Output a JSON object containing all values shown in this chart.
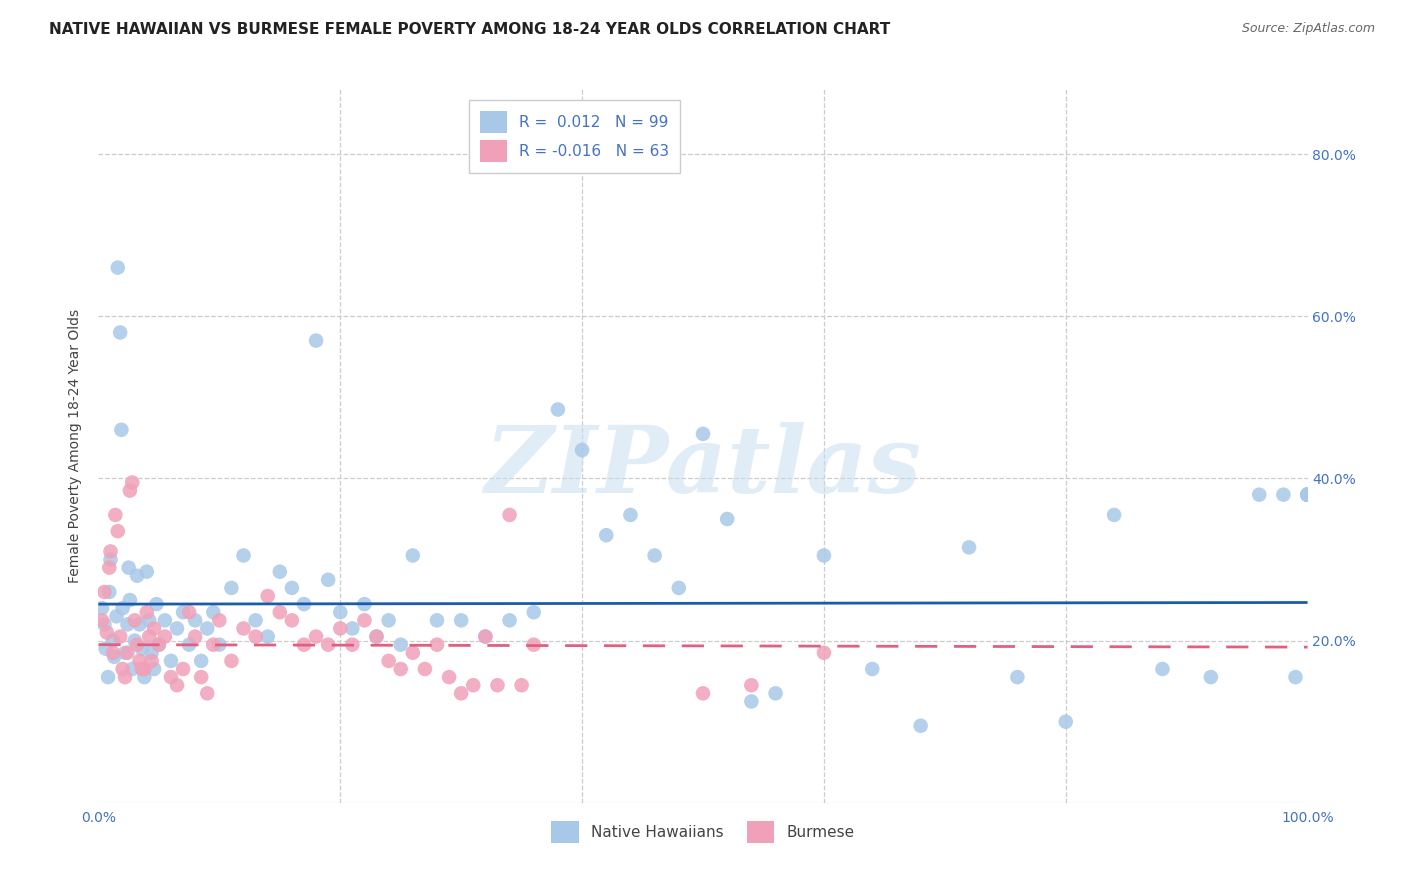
{
  "title": "NATIVE HAWAIIAN VS BURMESE FEMALE POVERTY AMONG 18-24 YEAR OLDS CORRELATION CHART",
  "source": "Source: ZipAtlas.com",
  "ylabel": "Female Poverty Among 18-24 Year Olds",
  "xlim": [
    0.0,
    1.0
  ],
  "ylim": [
    0.0,
    0.88
  ],
  "xticks": [
    0.0,
    1.0
  ],
  "xticklabels": [
    "0.0%",
    "100.0%"
  ],
  "yticks_right": [
    0.2,
    0.4,
    0.6,
    0.8
  ],
  "yticklabels_right": [
    "20.0%",
    "40.0%",
    "60.0%",
    "80.0%"
  ],
  "nh_color": "#a8c8e8",
  "bur_color": "#f0a0b8",
  "nh_line_color": "#1a5ca8",
  "bur_line_color": "#e06080",
  "nh_line_y": 0.245,
  "bur_line_y": 0.195,
  "R_nh": "0.012",
  "N_nh": "99",
  "R_bur": "-0.016",
  "N_bur": "63",
  "nh_x": [
    0.003,
    0.005,
    0.006,
    0.008,
    0.009,
    0.01,
    0.012,
    0.013,
    0.015,
    0.016,
    0.018,
    0.019,
    0.02,
    0.022,
    0.024,
    0.025,
    0.026,
    0.028,
    0.03,
    0.032,
    0.034,
    0.036,
    0.038,
    0.04,
    0.042,
    0.044,
    0.046,
    0.048,
    0.05,
    0.055,
    0.06,
    0.065,
    0.07,
    0.075,
    0.08,
    0.085,
    0.09,
    0.095,
    0.1,
    0.11,
    0.12,
    0.13,
    0.14,
    0.15,
    0.16,
    0.17,
    0.18,
    0.19,
    0.2,
    0.21,
    0.22,
    0.23,
    0.24,
    0.25,
    0.26,
    0.28,
    0.3,
    0.32,
    0.34,
    0.36,
    0.38,
    0.4,
    0.42,
    0.44,
    0.46,
    0.48,
    0.5,
    0.52,
    0.54,
    0.56,
    0.6,
    0.64,
    0.68,
    0.72,
    0.76,
    0.8,
    0.84,
    0.88,
    0.92,
    0.96,
    0.98,
    0.99,
    1.0,
    1.0,
    1.0,
    1.0,
    1.0,
    1.0,
    1.0,
    1.0,
    1.0,
    1.0,
    1.0,
    1.0,
    1.0,
    1.0,
    1.0,
    1.0,
    1.0
  ],
  "nh_y": [
    0.24,
    0.22,
    0.19,
    0.155,
    0.26,
    0.3,
    0.2,
    0.18,
    0.23,
    0.66,
    0.58,
    0.46,
    0.24,
    0.185,
    0.22,
    0.29,
    0.25,
    0.165,
    0.2,
    0.28,
    0.22,
    0.19,
    0.155,
    0.285,
    0.225,
    0.185,
    0.165,
    0.245,
    0.195,
    0.225,
    0.175,
    0.215,
    0.235,
    0.195,
    0.225,
    0.175,
    0.215,
    0.235,
    0.195,
    0.265,
    0.305,
    0.225,
    0.205,
    0.285,
    0.265,
    0.245,
    0.57,
    0.275,
    0.235,
    0.215,
    0.245,
    0.205,
    0.225,
    0.195,
    0.305,
    0.225,
    0.225,
    0.205,
    0.225,
    0.235,
    0.485,
    0.435,
    0.33,
    0.355,
    0.305,
    0.265,
    0.455,
    0.35,
    0.125,
    0.135,
    0.305,
    0.165,
    0.095,
    0.315,
    0.155,
    0.1,
    0.355,
    0.165,
    0.155,
    0.38,
    0.38,
    0.155,
    0.38,
    0.38,
    0.38,
    0.38,
    0.38,
    0.38,
    0.38,
    0.38,
    0.38,
    0.38,
    0.38,
    0.38,
    0.38,
    0.38,
    0.38,
    0.38,
    0.38
  ],
  "bur_x": [
    0.003,
    0.005,
    0.007,
    0.009,
    0.01,
    0.012,
    0.014,
    0.016,
    0.018,
    0.02,
    0.022,
    0.024,
    0.026,
    0.028,
    0.03,
    0.032,
    0.034,
    0.036,
    0.038,
    0.04,
    0.042,
    0.044,
    0.046,
    0.05,
    0.055,
    0.06,
    0.065,
    0.07,
    0.075,
    0.08,
    0.085,
    0.09,
    0.095,
    0.1,
    0.11,
    0.12,
    0.13,
    0.14,
    0.15,
    0.16,
    0.17,
    0.18,
    0.19,
    0.2,
    0.21,
    0.22,
    0.23,
    0.24,
    0.25,
    0.26,
    0.27,
    0.28,
    0.29,
    0.3,
    0.31,
    0.32,
    0.33,
    0.34,
    0.35,
    0.36,
    0.5,
    0.54,
    0.6
  ],
  "bur_y": [
    0.225,
    0.26,
    0.21,
    0.29,
    0.31,
    0.185,
    0.355,
    0.335,
    0.205,
    0.165,
    0.155,
    0.185,
    0.385,
    0.395,
    0.225,
    0.195,
    0.175,
    0.165,
    0.165,
    0.235,
    0.205,
    0.175,
    0.215,
    0.195,
    0.205,
    0.155,
    0.145,
    0.165,
    0.235,
    0.205,
    0.155,
    0.135,
    0.195,
    0.225,
    0.175,
    0.215,
    0.205,
    0.255,
    0.235,
    0.225,
    0.195,
    0.205,
    0.195,
    0.215,
    0.195,
    0.225,
    0.205,
    0.175,
    0.165,
    0.185,
    0.165,
    0.195,
    0.155,
    0.135,
    0.145,
    0.205,
    0.145,
    0.355,
    0.145,
    0.195,
    0.135,
    0.145,
    0.185
  ],
  "watermark_text": "ZIPatlas",
  "background_color": "#ffffff",
  "grid_color": "#cccccc",
  "title_fontsize": 11,
  "axis_label_fontsize": 10,
  "tick_fontsize": 10,
  "legend_fontsize": 11
}
